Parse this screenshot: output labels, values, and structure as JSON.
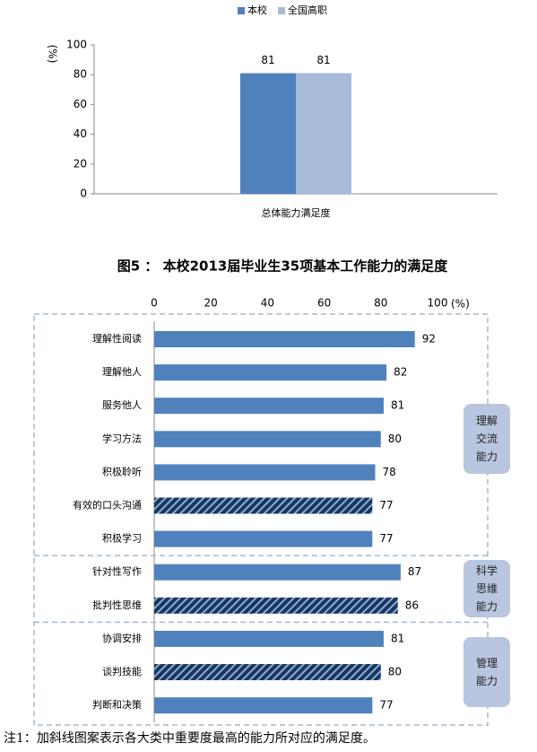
{
  "chart_data": [
    {
      "type": "bar",
      "categories": [
        "总体能力满足度"
      ],
      "series": [
        {
          "name": "本校",
          "color": "#4f81bd",
          "values": [
            81
          ]
        },
        {
          "name": "全国高职",
          "color": "#a9bbdb",
          "values": [
            81
          ]
        }
      ],
      "y_label": "(%)",
      "ylim": [
        0,
        100
      ],
      "yticks": [
        0,
        20,
        40,
        60,
        80,
        100
      ],
      "legend": "top",
      "grid": false
    },
    {
      "type": "hbar",
      "title": "图5 ： 本校2013届毕业生35项基本工作能力的满足度",
      "categories": [
        "理解性阅读",
        "理解他人",
        "服务他人",
        "学习方法",
        "积极聆听",
        "有效的口头沟通",
        "积极学习",
        "针对性写作",
        "批判性思维",
        "协调安排",
        "谈判技能",
        "判断和决策"
      ],
      "values": [
        92,
        82,
        81,
        80,
        78,
        77,
        77,
        87,
        86,
        81,
        80,
        77
      ],
      "hatched": [
        false,
        false,
        false,
        false,
        false,
        true,
        false,
        false,
        true,
        false,
        true,
        false
      ],
      "color": "#4f81bd",
      "x_unit": "(%)",
      "xlim": [
        0,
        100
      ],
      "xticks": [
        0,
        20,
        40,
        60,
        80,
        100
      ],
      "groups": [
        {
          "name": "理解交流能力",
          "categories": [
            "理解性阅读",
            "理解他人",
            "服务他人",
            "学习方法",
            "积极聆听",
            "有效的口头沟通",
            "积极学习"
          ]
        },
        {
          "name": "科学思维能力",
          "categories": [
            "针对性写作",
            "批判性思维"
          ]
        },
        {
          "name": "管理能力",
          "categories": [
            "协调安排",
            "谈判技能",
            "判断和决策"
          ]
        }
      ],
      "note": "注1：加斜线图案表示各大类中重要度最高的能力所对应的满足度。"
    }
  ]
}
